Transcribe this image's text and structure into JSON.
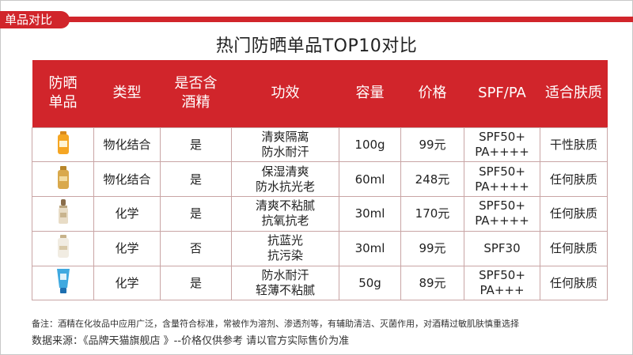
{
  "header_tag": "单品对比",
  "title": "热门防晒单品TOP10对比",
  "table": {
    "headers": [
      "防晒\n单品",
      "类型",
      "是否含\n酒精",
      "功效",
      "容量",
      "价格",
      "SPF/PA",
      "适合肤质"
    ],
    "rows": [
      {
        "icon": "orange-sunscreen-bottle-icon",
        "type": "物化结合",
        "alcohol": "是",
        "effect": "清爽隔离\n防水耐汗",
        "volume": "100g",
        "price": "99元",
        "spf": "SPF50+\nPA++++",
        "skin": "干性肤质"
      },
      {
        "icon": "gold-sunscreen-bottle-icon",
        "type": "物化结合",
        "alcohol": "是",
        "effect": "保湿清爽\n防水抗光老",
        "volume": "60ml",
        "price": "248元",
        "spf": "SPF50+\nPA++++",
        "skin": "任何肤质"
      },
      {
        "icon": "serum-dropper-bottle-icon",
        "type": "化学",
        "alcohol": "是",
        "effect": "清爽不粘腻\n抗氧抗老",
        "volume": "30ml",
        "price": "170元",
        "spf": "SPF50+\nPA++++",
        "skin": "任何肤质"
      },
      {
        "icon": "white-sunscreen-bottle-icon",
        "type": "化学",
        "alcohol": "否",
        "effect": "抗蓝光\n抗污染",
        "volume": "30ml",
        "price": "99元",
        "spf": "SPF30",
        "skin": "任何肤质"
      },
      {
        "icon": "blue-sunscreen-tube-icon",
        "type": "化学",
        "alcohol": "是",
        "effect": "防水耐汗\n轻薄不粘腻",
        "volume": "50g",
        "price": "89元",
        "spf": "SPF50+\nPA+++",
        "skin": "任何肤质"
      }
    ]
  },
  "note": "备注：酒精在化妆品中应用广泛，含量符合标准，常被作为溶剂、渗透剂等，有辅助清洁、灭菌作用，对酒精过敏肌肤慎重选择",
  "source": "数据来源：《品牌天猫旗舰店 》--价格仅供参考 请以官方实际售价为准",
  "colors": {
    "accent": "#d1252b",
    "border": "#c9a5a5"
  }
}
